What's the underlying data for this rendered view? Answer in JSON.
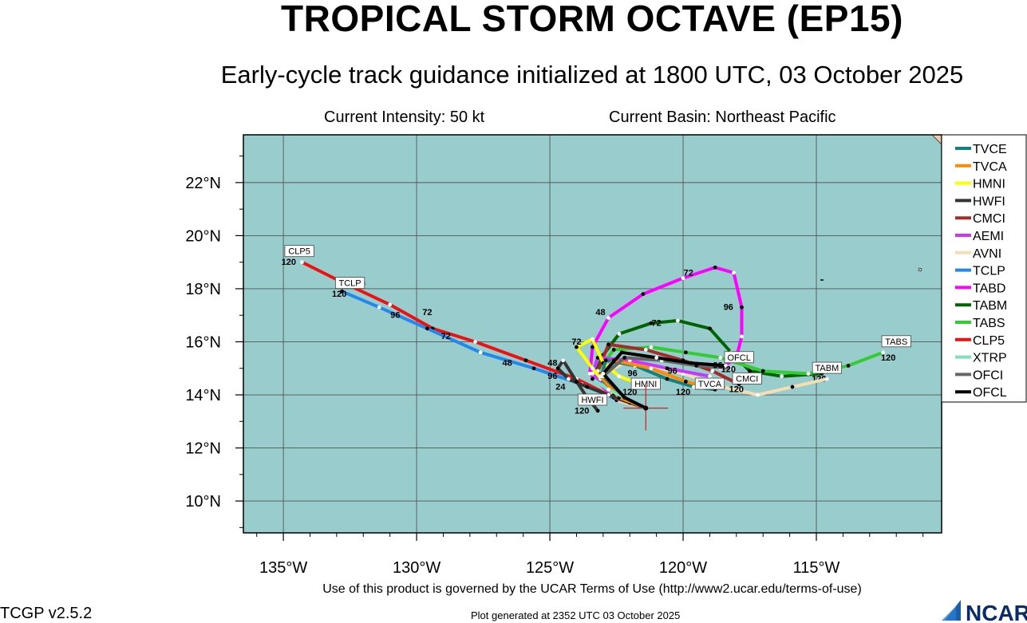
{
  "title": "TROPICAL STORM OCTAVE (EP15)",
  "subtitle": "Early-cycle track guidance initialized at 1800 UTC, 03 October 2025",
  "current_intensity": "Current Intensity: 50 kt",
  "current_basin": "Current Basin: Northeast Pacific",
  "terms": "Use of this product is governed by the UCAR Terms of Use (http://www2.ucar.edu/terms-of-use)",
  "version": "TCGP v2.5.2",
  "generated": "Plot generated at 2352 UTC   03 October 2025",
  "logo_text": "NCAR",
  "colors": {
    "ocean": "#99cccc",
    "land": "#e6ccaa",
    "grid": "#555555",
    "marker": "#d02020"
  },
  "map": {
    "lon_range": [
      -136.5,
      -110.3
    ],
    "lat_range": [
      8.8,
      23.8
    ],
    "lon_ticks": [
      {
        "value": -135,
        "label": "135°W"
      },
      {
        "value": -130,
        "label": "130°W"
      },
      {
        "value": -125,
        "label": "125°W"
      },
      {
        "value": -120,
        "label": "120°W"
      },
      {
        "value": -115,
        "label": "115°W"
      }
    ],
    "lat_ticks": [
      {
        "value": 10,
        "label": "10°N"
      },
      {
        "value": 12,
        "label": "12°N"
      },
      {
        "value": 14,
        "label": "14°N"
      },
      {
        "value": 16,
        "label": "16°N"
      },
      {
        "value": 18,
        "label": "18°N"
      },
      {
        "value": 20,
        "label": "20°N"
      },
      {
        "value": 22,
        "label": "22°N"
      }
    ],
    "current_position": [
      -121.4,
      13.5
    ]
  },
  "models": [
    {
      "name": "TVCE",
      "color": "#148080"
    },
    {
      "name": "TVCA",
      "color": "#ff8c00"
    },
    {
      "name": "HMNI",
      "color": "#ffff00"
    },
    {
      "name": "HWFI",
      "color": "#333333"
    },
    {
      "name": "CMCI",
      "color": "#a52a2a"
    },
    {
      "name": "AEMI",
      "color": "#cc33ff"
    },
    {
      "name": "AVNI",
      "color": "#f5deb3"
    },
    {
      "name": "TCLP",
      "color": "#2288ee"
    },
    {
      "name": "TABD",
      "color": "#ff00ff"
    },
    {
      "name": "TABM",
      "color": "#006400"
    },
    {
      "name": "TABS",
      "color": "#33cc33"
    },
    {
      "name": "CLP5",
      "color": "#ee1111"
    },
    {
      "name": "XTRP",
      "color": "#7fe0c0"
    },
    {
      "name": "OFCI",
      "color": "#666666"
    },
    {
      "name": "OFCL",
      "color": "#000000"
    }
  ],
  "tracks": [
    {
      "name": "CLP5",
      "label": "CLP5",
      "label_at": [
        -134.4,
        19.3
      ],
      "points": [
        [
          -121.4,
          13.5
        ],
        [
          -122.6,
          13.9
        ],
        [
          -124.0,
          14.6
        ],
        [
          -125.9,
          15.3
        ],
        [
          -127.8,
          16.0
        ],
        [
          -129.4,
          16.5
        ],
        [
          -131.0,
          17.4
        ],
        [
          -132.9,
          18.3
        ],
        [
          -134.3,
          19.0
        ]
      ],
      "labels": [
        {
          "text": "48",
          "at": [
            -124.9,
            15.1
          ]
        },
        {
          "text": "72",
          "at": [
            -129.6,
            17.0
          ]
        },
        {
          "text": "96",
          "at": [
            -132.1,
            18.1
          ]
        },
        {
          "text": "120",
          "at": [
            -134.8,
            18.9
          ]
        }
      ]
    },
    {
      "name": "TCLP",
      "label": "TCLP",
      "label_at": [
        -132.5,
        18.1
      ],
      "points": [
        [
          -121.4,
          13.5
        ],
        [
          -122.4,
          13.8
        ],
        [
          -123.8,
          14.4
        ],
        [
          -125.6,
          15.0
        ],
        [
          -127.6,
          15.6
        ],
        [
          -129.6,
          16.5
        ],
        [
          -131.4,
          17.3
        ],
        [
          -132.8,
          17.9
        ]
      ],
      "labels": [
        {
          "text": "48",
          "at": [
            -126.6,
            15.1
          ]
        },
        {
          "text": "72",
          "at": [
            -128.9,
            16.1
          ]
        },
        {
          "text": "96",
          "at": [
            -130.8,
            16.9
          ]
        },
        {
          "text": "120",
          "at": [
            -132.9,
            17.7
          ]
        }
      ]
    },
    {
      "name": "TABD",
      "label": "",
      "label_at": [
        0,
        0
      ],
      "points": [
        [
          -121.4,
          13.5
        ],
        [
          -122.6,
          13.9
        ],
        [
          -123.5,
          14.8
        ],
        [
          -123.4,
          15.8
        ],
        [
          -122.8,
          16.9
        ],
        [
          -121.5,
          17.8
        ],
        [
          -120.0,
          18.4
        ],
        [
          -118.8,
          18.8
        ],
        [
          -118.1,
          18.6
        ],
        [
          -117.8,
          17.3
        ],
        [
          -117.8,
          16.2
        ],
        [
          -118.0,
          15.4
        ],
        [
          -118.6,
          15.0
        ]
      ],
      "labels": [
        {
          "text": "48",
          "at": [
            -123.1,
            17.0
          ]
        },
        {
          "text": "72",
          "at": [
            -119.8,
            18.5
          ]
        },
        {
          "text": "96",
          "at": [
            -118.3,
            17.2
          ]
        }
      ]
    },
    {
      "name": "TABM",
      "label": "TABM",
      "label_at": [
        -114.6,
        14.9
      ],
      "points": [
        [
          -121.4,
          13.5
        ],
        [
          -122.6,
          13.9
        ],
        [
          -123.3,
          14.8
        ],
        [
          -123.0,
          15.5
        ],
        [
          -122.4,
          16.3
        ],
        [
          -121.2,
          16.7
        ],
        [
          -120.2,
          16.8
        ],
        [
          -119.0,
          16.5
        ],
        [
          -118.2,
          15.6
        ],
        [
          -117.5,
          14.9
        ],
        [
          -116.3,
          14.7
        ],
        [
          -114.8,
          14.8
        ]
      ],
      "labels": [
        {
          "text": "72",
          "at": [
            -121.0,
            16.6
          ]
        },
        {
          "text": "120",
          "at": [
            -114.9,
            14.5
          ]
        }
      ]
    },
    {
      "name": "TABS",
      "label": "TABS",
      "label_at": [
        -112.0,
        15.9
      ],
      "points": [
        [
          -121.4,
          13.5
        ],
        [
          -122.6,
          13.9
        ],
        [
          -123.3,
          14.8
        ],
        [
          -122.6,
          15.7
        ],
        [
          -121.2,
          15.8
        ],
        [
          -119.9,
          15.6
        ],
        [
          -118.6,
          15.4
        ],
        [
          -117.0,
          14.9
        ],
        [
          -115.3,
          14.8
        ],
        [
          -113.8,
          15.1
        ],
        [
          -112.5,
          15.6
        ]
      ],
      "labels": [
        {
          "text": "120",
          "at": [
            -112.3,
            15.3
          ]
        }
      ]
    },
    {
      "name": "AVNI",
      "label": "",
      "label_at": [
        0,
        0
      ],
      "points": [
        [
          -121.4,
          13.5
        ],
        [
          -122.5,
          13.8
        ],
        [
          -123.0,
          14.8
        ],
        [
          -122.0,
          15.3
        ],
        [
          -120.0,
          14.8
        ],
        [
          -118.5,
          14.3
        ],
        [
          -117.2,
          14.0
        ],
        [
          -115.9,
          14.3
        ],
        [
          -114.6,
          14.6
        ]
      ],
      "labels": []
    },
    {
      "name": "CMCI",
      "label": "CMCI",
      "label_at": [
        -117.6,
        14.5
      ],
      "points": [
        [
          -121.4,
          13.5
        ],
        [
          -122.5,
          13.9
        ],
        [
          -123.2,
          14.9
        ],
        [
          -122.8,
          15.9
        ],
        [
          -121.4,
          15.7
        ],
        [
          -120.0,
          15.3
        ],
        [
          -118.9,
          14.9
        ],
        [
          -117.9,
          14.4
        ]
      ],
      "labels": [
        {
          "text": "120",
          "at": [
            -118.0,
            14.1
          ]
        }
      ]
    },
    {
      "name": "AEMI",
      "label": "",
      "label_at": [
        0,
        0
      ],
      "points": [
        [
          -121.4,
          13.5
        ],
        [
          -122.6,
          13.9
        ],
        [
          -123.4,
          14.8
        ],
        [
          -123.2,
          15.4
        ],
        [
          -122.0,
          15.3
        ],
        [
          -120.6,
          15.0
        ],
        [
          -119.0,
          14.7
        ]
      ],
      "labels": [
        {
          "text": "96",
          "at": [
            -120.4,
            14.8
          ]
        },
        {
          "text": "120",
          "at": [
            -118.9,
            14.4
          ]
        }
      ]
    },
    {
      "name": "HMNI",
      "label": "HMNI",
      "label_at": [
        -121.4,
        14.3
      ],
      "points": [
        [
          -121.4,
          13.5
        ],
        [
          -122.6,
          14.0
        ],
        [
          -123.4,
          15.0
        ],
        [
          -124.0,
          15.8
        ],
        [
          -123.4,
          16.1
        ],
        [
          -123.0,
          15.2
        ],
        [
          -122.4,
          14.7
        ],
        [
          -121.6,
          14.4
        ]
      ],
      "labels": [
        {
          "text": "72",
          "at": [
            -124.0,
            15.9
          ]
        },
        {
          "text": "120",
          "at": [
            -122.0,
            14.0
          ]
        }
      ]
    },
    {
      "name": "HWFI",
      "label": "HWFI",
      "label_at": [
        -123.4,
        13.7
      ],
      "points": [
        [
          -121.4,
          13.5
        ],
        [
          -122.0,
          13.7
        ],
        [
          -122.8,
          14.0
        ],
        [
          -123.6,
          14.3
        ],
        [
          -124.3,
          14.6
        ],
        [
          -124.7,
          15.0
        ],
        [
          -124.5,
          15.3
        ],
        [
          -124.0,
          14.5
        ],
        [
          -123.6,
          13.9
        ],
        [
          -123.2,
          13.4
        ]
      ],
      "labels": [
        {
          "text": "24",
          "at": [
            -124.6,
            14.2
          ]
        },
        {
          "text": "96",
          "at": [
            -124.9,
            14.6
          ]
        },
        {
          "text": "120",
          "at": [
            -123.8,
            13.3
          ]
        }
      ]
    },
    {
      "name": "TVCE",
      "label": "",
      "label_at": [
        0,
        0
      ],
      "points": [
        [
          -121.4,
          13.5
        ],
        [
          -122.3,
          13.9
        ],
        [
          -123.1,
          14.6
        ],
        [
          -122.9,
          15.3
        ],
        [
          -121.8,
          15.1
        ],
        [
          -120.6,
          14.6
        ],
        [
          -119.6,
          14.3
        ],
        [
          -118.8,
          14.2
        ]
      ],
      "labels": [
        {
          "text": "96",
          "at": [
            -121.9,
            14.7
          ]
        },
        {
          "text": "120",
          "at": [
            -120.0,
            14.0
          ]
        }
      ]
    },
    {
      "name": "TVCA",
      "label": "TVCA",
      "label_at": [
        -119.0,
        14.3
      ],
      "points": [
        [
          -121.4,
          13.5
        ],
        [
          -122.4,
          13.9
        ],
        [
          -123.1,
          14.7
        ],
        [
          -122.6,
          15.3
        ],
        [
          -121.2,
          15.0
        ],
        [
          -119.9,
          14.5
        ],
        [
          -119.1,
          14.3
        ]
      ],
      "labels": [
        {
          "text": "96",
          "at": [
            -119.3,
            14.25
          ]
        }
      ]
    },
    {
      "name": "XTRP",
      "label": "",
      "label_at": [
        0,
        0
      ],
      "points": [
        [
          -121.4,
          13.5
        ],
        [
          -122.2,
          13.9
        ],
        [
          -122.8,
          14.2
        ],
        [
          -123.4,
          14.6
        ]
      ],
      "labels": []
    },
    {
      "name": "OFCI",
      "label": "",
      "label_at": [
        0,
        0
      ],
      "points": [
        [
          -121.4,
          13.5
        ],
        [
          -122.2,
          13.9
        ],
        [
          -123.0,
          14.7
        ],
        [
          -122.2,
          15.4
        ],
        [
          -120.8,
          15.3
        ],
        [
          -119.5,
          15.1
        ],
        [
          -118.2,
          15.0
        ]
      ],
      "labels": []
    },
    {
      "name": "OFCL",
      "label": "OFCL",
      "label_at": [
        -117.9,
        15.3
      ],
      "points": [
        [
          -121.4,
          13.5
        ],
        [
          -122.2,
          13.9
        ],
        [
          -123.0,
          14.8
        ],
        [
          -122.3,
          15.6
        ],
        [
          -121.0,
          15.4
        ],
        [
          -119.7,
          15.2
        ],
        [
          -118.4,
          15.1
        ]
      ],
      "labels": [
        {
          "text": "96",
          "at": [
            -118.7,
            15.0
          ]
        },
        {
          "text": "120",
          "at": [
            -118.3,
            14.85
          ]
        }
      ]
    }
  ]
}
